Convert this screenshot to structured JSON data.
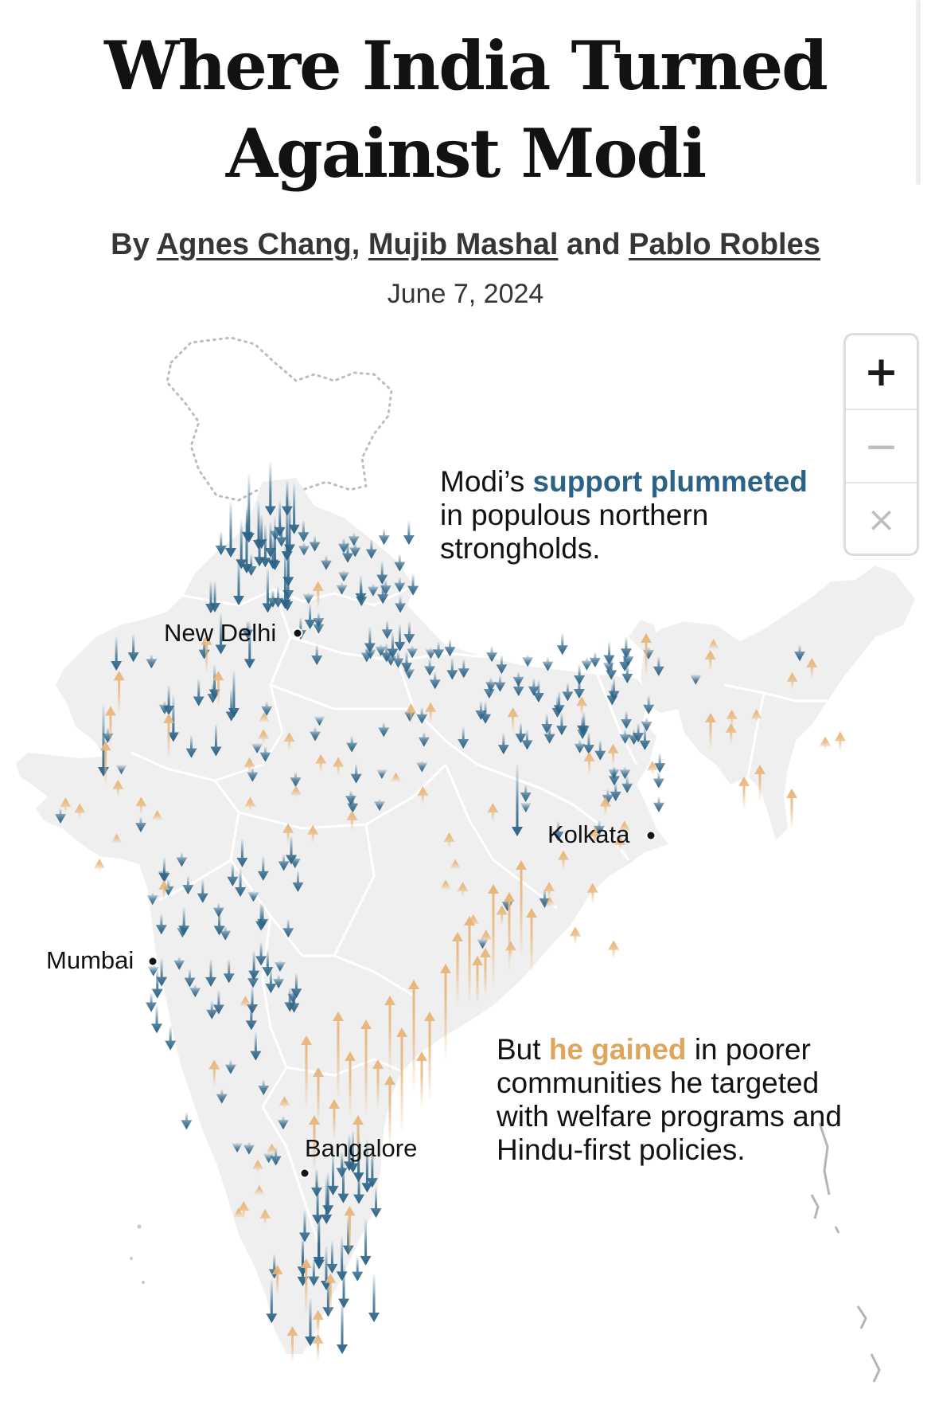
{
  "article": {
    "headline_line1": "Where India Turned",
    "headline_line2": "Against Modi",
    "byline_prefix": "By",
    "authors": [
      "Agnes Chang",
      "Mujib Mashal",
      "Pablo Robles"
    ],
    "byline_sep1": ",",
    "byline_and": "and",
    "date": "June 7, 2024"
  },
  "map_controls": {
    "zoom_in": "+",
    "zoom_out": "−",
    "reset": "×"
  },
  "annotations": {
    "north": {
      "pre": "Modi’s",
      "highlight": "support plummeted",
      "post_line2": "in populous northern",
      "post_line3": "strongholds."
    },
    "south": {
      "pre": "But",
      "highlight": "he gained",
      "post_line1": "in poorer",
      "line2": "communities he targeted",
      "line3": "with welfare programs and",
      "line4": "Hindu-first policies."
    }
  },
  "cities": [
    "New Delhi",
    "Kolkata",
    "Mumbai",
    "Bangalore"
  ],
  "colors": {
    "loss": "#2b6387",
    "gain": "#e8b57a",
    "land": "#efefef",
    "border": "#ffffff",
    "disputed_border": "#bbbbbb",
    "city_dot": "#121212"
  }
}
